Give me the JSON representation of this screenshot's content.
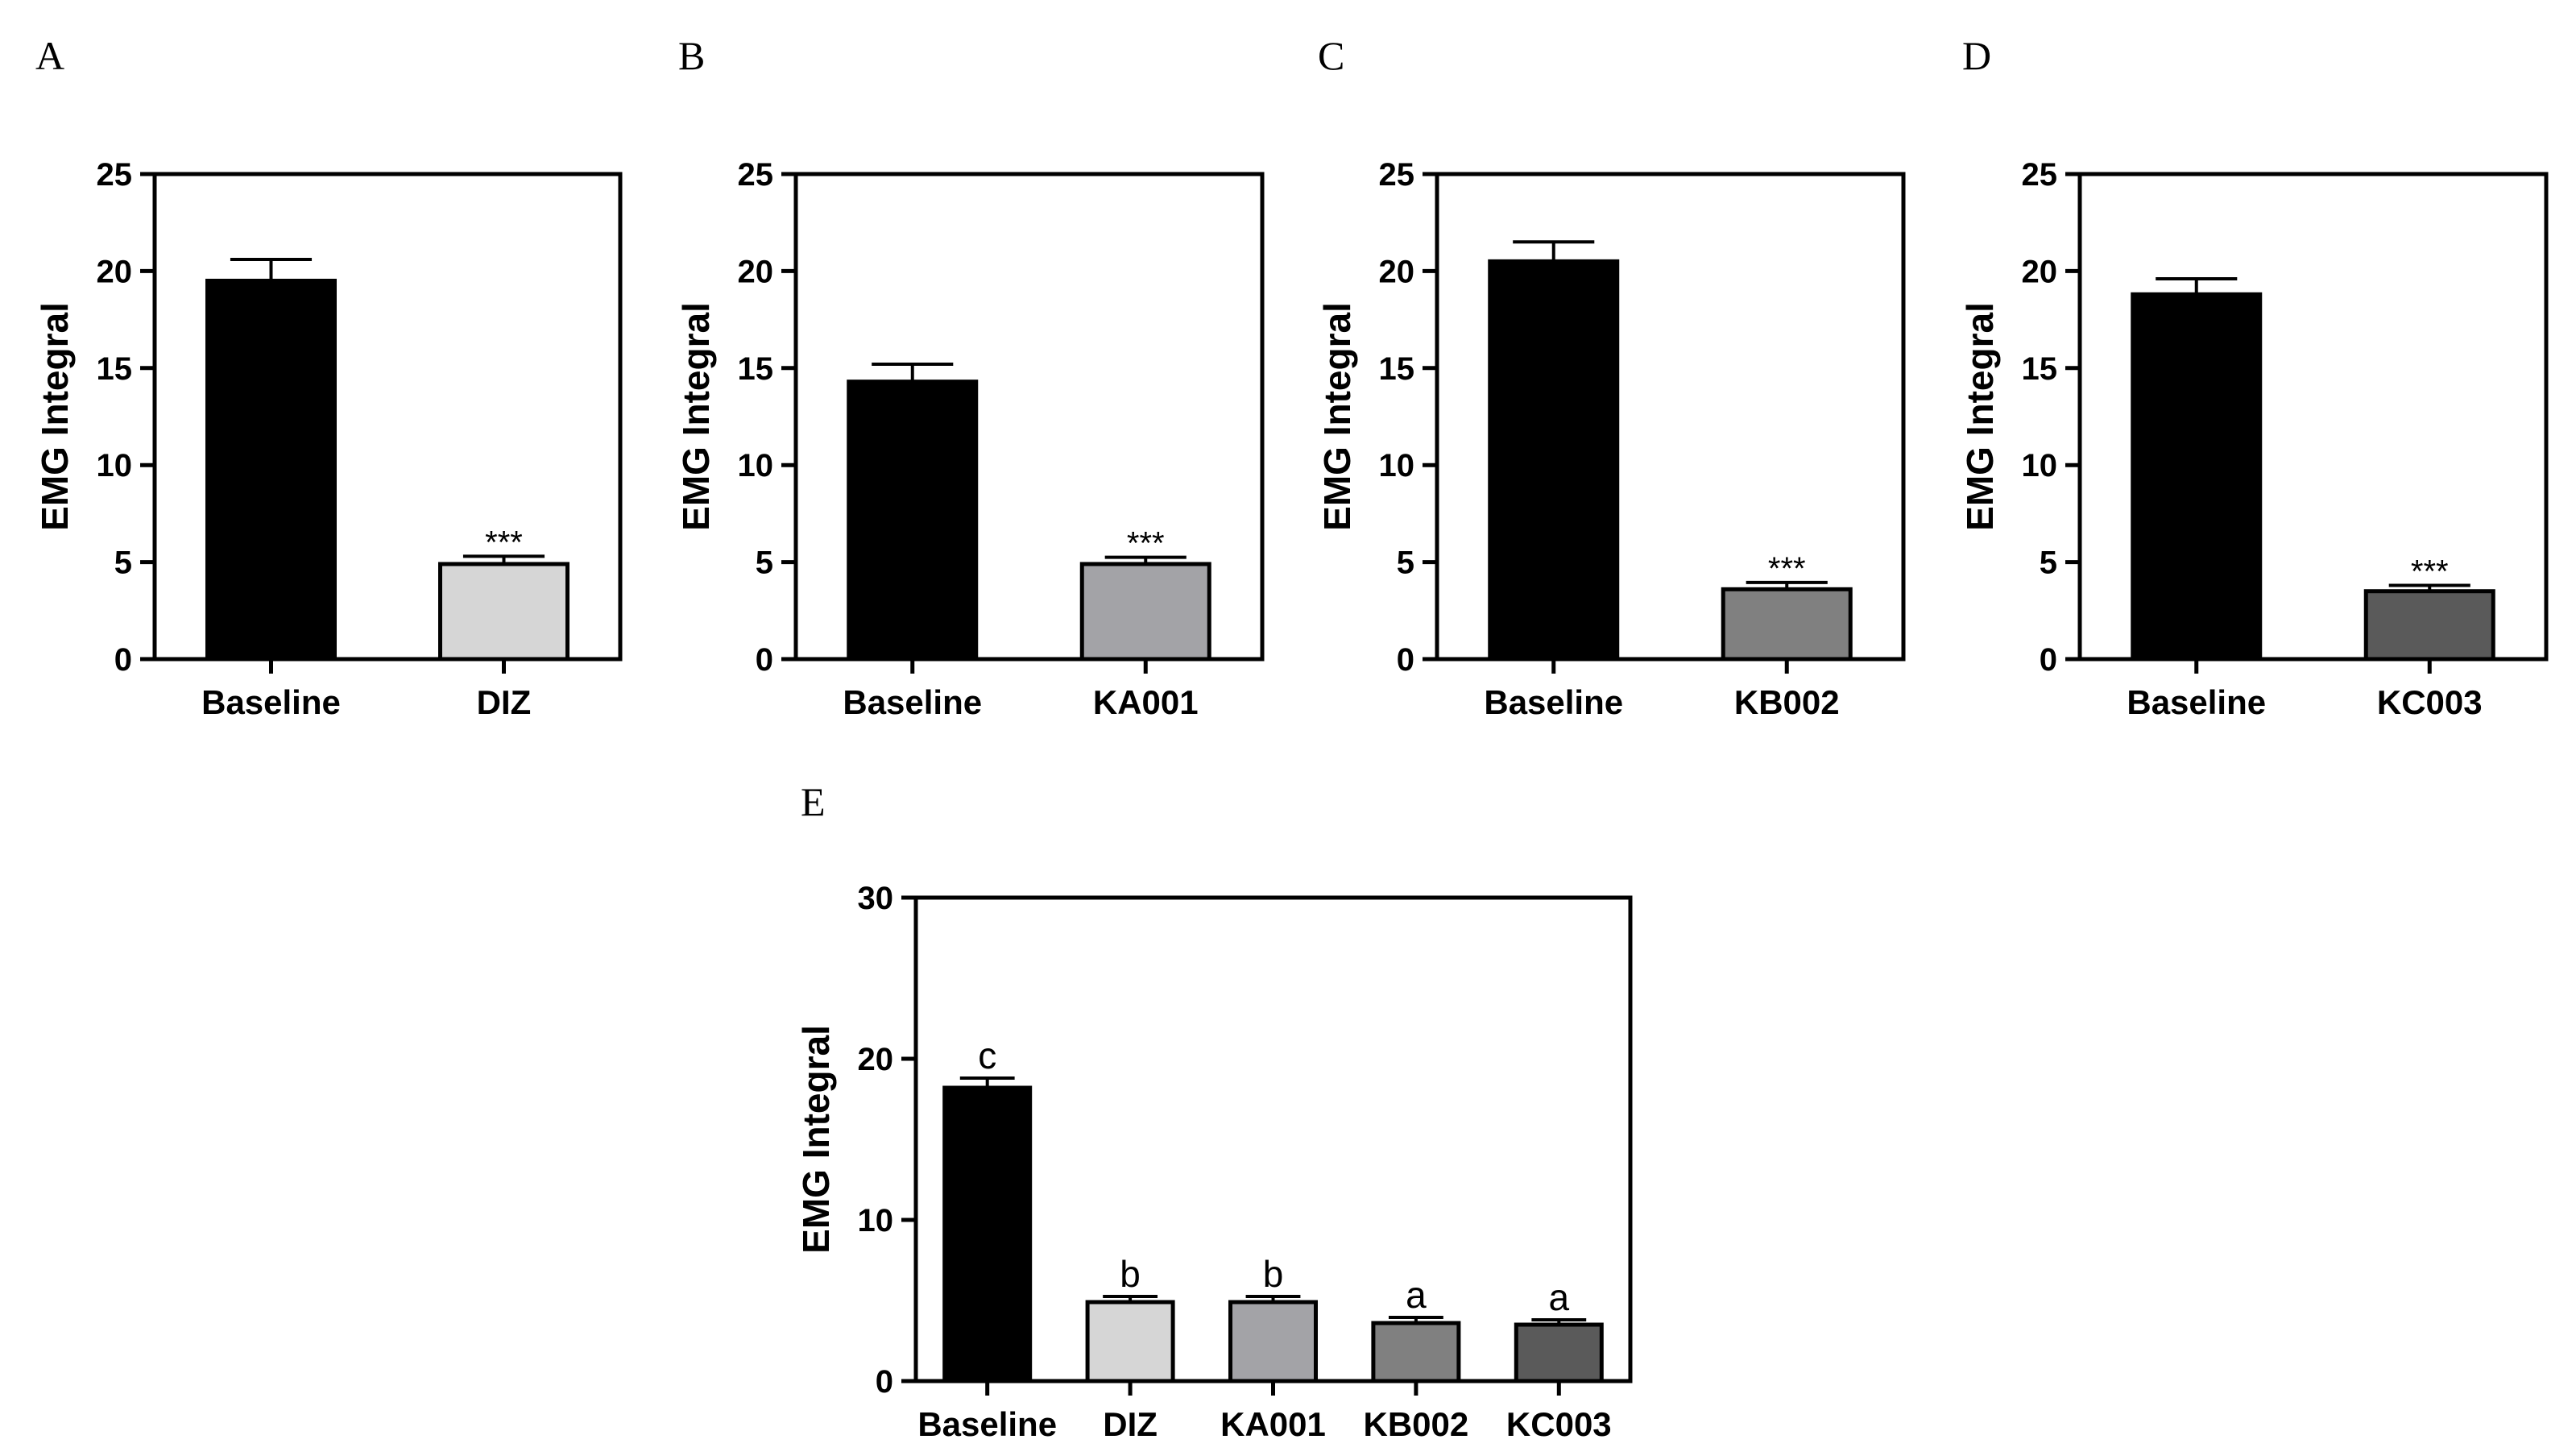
{
  "chart_data": [
    {
      "panel": "A",
      "type": "bar",
      "ylabel": "EMG Integral",
      "ylim": [
        0,
        25
      ],
      "yticks": [
        0,
        5,
        10,
        15,
        20,
        25
      ],
      "categories": [
        "Baseline",
        "DIZ"
      ],
      "values": [
        19.5,
        4.9
      ],
      "errors": [
        1.1,
        0.4
      ],
      "annotations": [
        "",
        "***"
      ],
      "colors": [
        "#000000",
        "#d6d6d6"
      ]
    },
    {
      "panel": "B",
      "type": "bar",
      "ylabel": "EMG Integral",
      "ylim": [
        0,
        25
      ],
      "yticks": [
        0,
        5,
        10,
        15,
        20,
        25
      ],
      "categories": [
        "Baseline",
        "KA001"
      ],
      "values": [
        14.3,
        4.9
      ],
      "errors": [
        0.9,
        0.35
      ],
      "annotations": [
        "",
        "***"
      ],
      "colors": [
        "#000000",
        "#a3a3a7"
      ]
    },
    {
      "panel": "C",
      "type": "bar",
      "ylabel": "EMG Integral",
      "ylim": [
        0,
        25
      ],
      "yticks": [
        0,
        5,
        10,
        15,
        20,
        25
      ],
      "categories": [
        "Baseline",
        "KB002"
      ],
      "values": [
        20.5,
        3.6
      ],
      "errors": [
        1.0,
        0.35
      ],
      "annotations": [
        "",
        "***"
      ],
      "colors": [
        "#000000",
        "#808080"
      ]
    },
    {
      "panel": "D",
      "type": "bar",
      "ylabel": "EMG Integral",
      "ylim": [
        0,
        25
      ],
      "yticks": [
        0,
        5,
        10,
        15,
        20,
        25
      ],
      "categories": [
        "Baseline",
        "KC003"
      ],
      "values": [
        18.8,
        3.5
      ],
      "errors": [
        0.8,
        0.3
      ],
      "annotations": [
        "",
        "***"
      ],
      "colors": [
        "#000000",
        "#5a5a5a"
      ]
    },
    {
      "panel": "E",
      "type": "bar",
      "ylabel": "EMG Integral",
      "ylim": [
        0,
        30
      ],
      "yticks": [
        0,
        10,
        20,
        30
      ],
      "categories": [
        "Baseline",
        "DIZ",
        "KA001",
        "KB002",
        "KC003"
      ],
      "values": [
        18.2,
        4.9,
        4.9,
        3.6,
        3.5
      ],
      "errors": [
        0.6,
        0.35,
        0.35,
        0.35,
        0.3
      ],
      "annotations": [
        "c",
        "b",
        "b",
        "a",
        "a"
      ],
      "colors": [
        "#000000",
        "#d6d6d6",
        "#a3a3a7",
        "#808080",
        "#5a5a5a"
      ]
    }
  ]
}
